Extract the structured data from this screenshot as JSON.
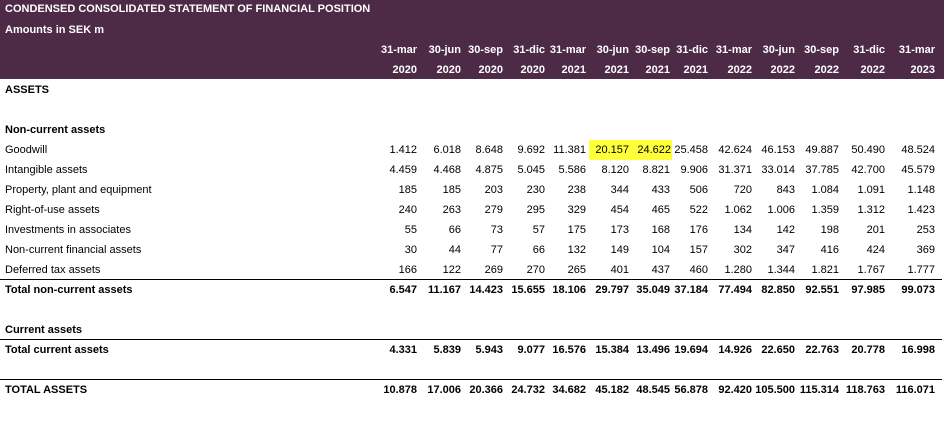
{
  "title": "CONDENSED CONSOLIDATED STATEMENT OF FINANCIAL POSITION",
  "subtitle": "Amounts in SEK m",
  "columns": [
    {
      "d": "31-mar",
      "y": "2020"
    },
    {
      "d": "30-jun",
      "y": "2020"
    },
    {
      "d": "30-sep",
      "y": "2020"
    },
    {
      "d": "31-dic",
      "y": "2020"
    },
    {
      "d": "31-mar",
      "y": "2021"
    },
    {
      "d": "30-jun",
      "y": "2021"
    },
    {
      "d": "30-sep",
      "y": "2021"
    },
    {
      "d": "31-dic",
      "y": "2021"
    },
    {
      "d": "31-mar",
      "y": "2022"
    },
    {
      "d": "30-jun",
      "y": "2022"
    },
    {
      "d": "30-sep",
      "y": "2022"
    },
    {
      "d": "31-dic",
      "y": "2022"
    },
    {
      "d": "31-mar",
      "y": "2023"
    }
  ],
  "sections": {
    "assets": "ASSETS",
    "non_current": "Non-current assets",
    "current": "Current assets"
  },
  "rows": {
    "goodwill": {
      "label": "Goodwill",
      "values": [
        "1.412",
        "6.018",
        "8.648",
        "9.692",
        "11.381",
        "20.157",
        "24.622",
        "25.458",
        "42.624",
        "46.153",
        "49.887",
        "50.490",
        "48.524"
      ],
      "highlight_columns": [
        5,
        6
      ],
      "highlight_color": "#ffff3a"
    },
    "intangible": {
      "label": "Intangible assets",
      "values": [
        "4.459",
        "4.468",
        "4.875",
        "5.045",
        "5.586",
        "8.120",
        "8.821",
        "9.906",
        "31.371",
        "33.014",
        "37.785",
        "42.700",
        "45.579"
      ]
    },
    "ppe": {
      "label": "Property, plant and equipment",
      "values": [
        "185",
        "185",
        "203",
        "230",
        "238",
        "344",
        "433",
        "506",
        "720",
        "843",
        "1.084",
        "1.091",
        "1.148"
      ]
    },
    "rou": {
      "label": "Right-of-use assets",
      "values": [
        "240",
        "263",
        "279",
        "295",
        "329",
        "454",
        "465",
        "522",
        "1.062",
        "1.006",
        "1.359",
        "1.312",
        "1.423"
      ]
    },
    "associates": {
      "label": "Investments in associates",
      "values": [
        "55",
        "66",
        "73",
        "57",
        "175",
        "173",
        "168",
        "176",
        "134",
        "142",
        "198",
        "201",
        "253"
      ]
    },
    "ncfa": {
      "label": "Non-current financial assets",
      "values": [
        "30",
        "44",
        "77",
        "66",
        "132",
        "149",
        "104",
        "157",
        "302",
        "347",
        "416",
        "424",
        "369"
      ]
    },
    "dta": {
      "label": "Deferred tax assets",
      "values": [
        "166",
        "122",
        "269",
        "270",
        "265",
        "401",
        "437",
        "460",
        "1.280",
        "1.344",
        "1.821",
        "1.767",
        "1.777"
      ]
    },
    "total_nca": {
      "label": "Total non-current assets",
      "values": [
        "6.547",
        "11.167",
        "14.423",
        "15.655",
        "18.106",
        "29.797",
        "35.049",
        "37.184",
        "77.494",
        "82.850",
        "92.551",
        "97.985",
        "99.073"
      ]
    },
    "total_ca": {
      "label": "Total current assets",
      "values": [
        "4.331",
        "5.839",
        "5.943",
        "9.077",
        "16.576",
        "15.384",
        "13.496",
        "19.694",
        "14.926",
        "22.650",
        "22.763",
        "20.778",
        "16.998"
      ]
    },
    "total_assets": {
      "label": "TOTAL ASSETS",
      "values": [
        "10.878",
        "17.006",
        "20.366",
        "24.732",
        "34.682",
        "45.182",
        "48.545",
        "56.878",
        "92.420",
        "105.500",
        "115.314",
        "118.763",
        "116.071"
      ]
    }
  },
  "colors": {
    "header_bg": "#4d2a46",
    "header_text": "#ffffff",
    "highlight": "#ffff3a"
  }
}
